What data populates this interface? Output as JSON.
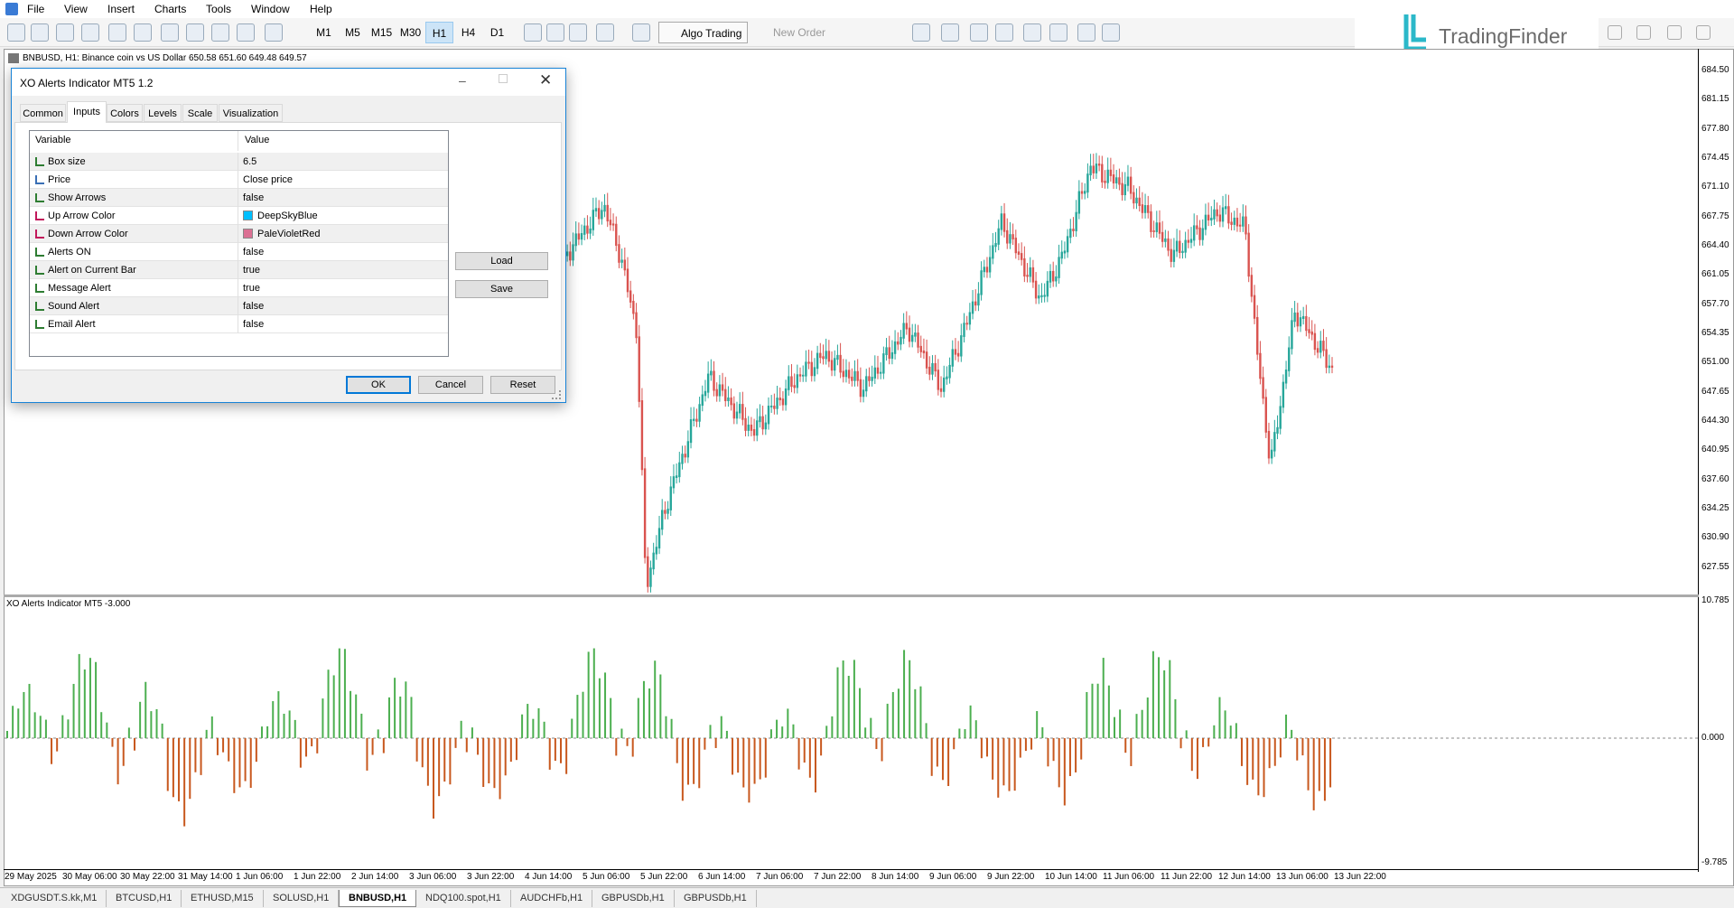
{
  "menu": [
    "File",
    "View",
    "Insert",
    "Charts",
    "Tools",
    "Window",
    "Help"
  ],
  "toolbar": {
    "timeframes": [
      "M1",
      "M5",
      "M15",
      "M30",
      "H1",
      "H4",
      "D1"
    ],
    "active_timeframe": "H1",
    "algo_trading": "Algo Trading",
    "new_order": "New Order"
  },
  "logo": "TradingFinder",
  "chart": {
    "title": "BNBUSD, H1:  Binance coin vs US Dollar  650.58 651.60 649.48 649.57",
    "price_axis": [
      "684.50",
      "681.15",
      "677.80",
      "674.45",
      "671.10",
      "667.75",
      "664.40",
      "661.05",
      "657.70",
      "654.35",
      "651.00",
      "647.65",
      "644.30",
      "640.95",
      "637.60",
      "634.25",
      "630.90",
      "627.55"
    ],
    "indicator_label": "XO Alerts Indicator MT5 -3.000",
    "indicator_axis": [
      "10.785",
      "0.000",
      "-9.785"
    ],
    "time_axis": [
      "29 May 2025",
      "30 May 06:00",
      "30 May 22:00",
      "31 May 14:00",
      "1 Jun 06:00",
      "1 Jun 22:00",
      "2 Jun 14:00",
      "3 Jun 06:00",
      "3 Jun 22:00",
      "4 Jun 14:00",
      "5 Jun 06:00",
      "5 Jun 22:00",
      "6 Jun 14:00",
      "7 Jun 06:00",
      "7 Jun 22:00",
      "8 Jun 14:00",
      "9 Jun 06:00",
      "9 Jun 22:00",
      "10 Jun 14:00",
      "11 Jun 06:00",
      "11 Jun 22:00",
      "12 Jun 14:00",
      "13 Jun 06:00",
      "13 Jun 22:00"
    ]
  },
  "dialog": {
    "title": "XO Alerts Indicator MT5 1.2",
    "tabs": [
      "Common",
      "Inputs",
      "Colors",
      "Levels",
      "Scale",
      "Visualization"
    ],
    "active_tab": "Inputs",
    "table": {
      "headers": [
        "Variable",
        "Value"
      ],
      "rows": [
        [
          "Box size",
          "6.5"
        ],
        [
          "Price",
          "Close price"
        ],
        [
          "Show Arrows",
          "false"
        ],
        [
          "Up Arrow Color",
          "DeepSkyBlue"
        ],
        [
          "Down Arrow Color",
          "PaleVioletRed"
        ],
        [
          "Alerts ON",
          "false"
        ],
        [
          "Alert on Current Bar",
          "true"
        ],
        [
          "Message Alert",
          "true"
        ],
        [
          "Sound Alert",
          "false"
        ],
        [
          "Email Alert",
          "false"
        ]
      ]
    },
    "side_buttons": [
      "Load",
      "Save"
    ],
    "buttons": [
      "OK",
      "Cancel",
      "Reset"
    ]
  },
  "bottom_tabs": [
    "XDGUSDT.S.kk,M1",
    "BTCUSD,H1",
    "ETHUSD,M15",
    "SOLUSD,H1",
    "BNBUSD,H1",
    "NDQ100.spot,H1",
    "AUDCHFb,H1",
    "GBPUSDb,H1",
    "GBPUSDb,H1"
  ],
  "active_bottom_tab": "BNBUSD,H1"
}
